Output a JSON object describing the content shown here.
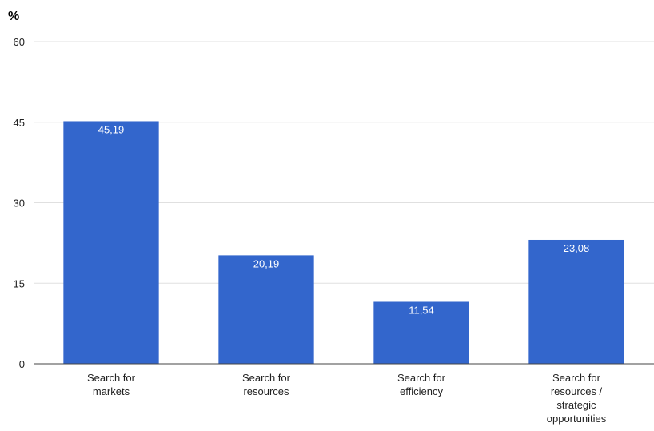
{
  "chart_data": {
    "type": "bar",
    "ylabel": "%",
    "categories": [
      [
        "Search for",
        "markets"
      ],
      [
        "Search for",
        "resources"
      ],
      [
        "Search for",
        "efficiency"
      ],
      [
        "Search for",
        "resources /",
        "strategic",
        "opportunities"
      ]
    ],
    "values": [
      45.19,
      20.19,
      11.54,
      23.08
    ],
    "data_labels": [
      "45,19",
      "20,19",
      "11,54",
      "23,08"
    ],
    "y_ticks": [
      0,
      15,
      30,
      45,
      60
    ],
    "ylim": [
      0,
      60
    ],
    "grid": true,
    "legend": "none",
    "colors": {
      "bar": "#3366cc",
      "grid": "#e0e0e0",
      "axis": "#444444",
      "text": "#222222",
      "data_label": "#ffffff"
    }
  }
}
